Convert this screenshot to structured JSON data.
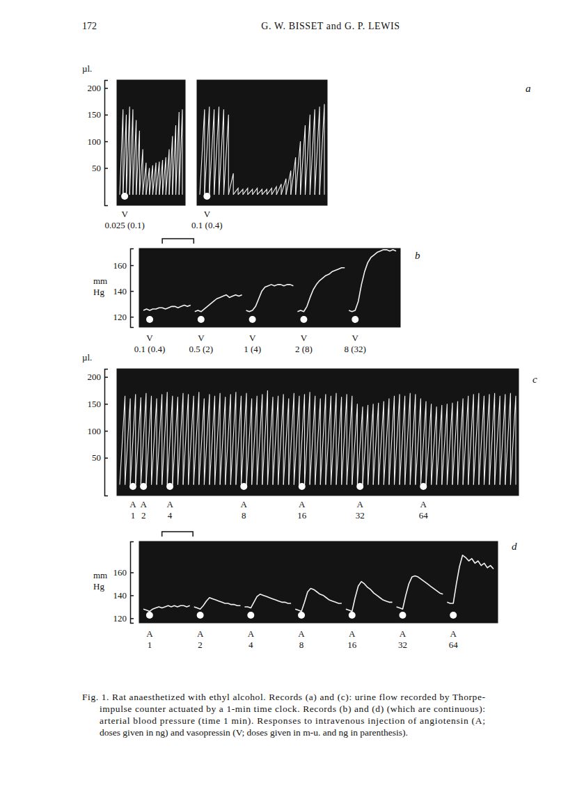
{
  "page": {
    "number": "172",
    "running_head": "G. W. BISSET and G. P. LEWIS",
    "caption": [
      "Fig. 1.  Rat anaesthetized with ethyl alcohol.  Records (a) and (c): urine flow recorded by Thorpe-",
      "impulse counter actuated by a 1-min time clock.  Records (b) and (d) (which are continuous):",
      "arterial blood pressure (time 1 min).  Responses to intravenous injection of angiotensin (A;",
      "doses given in ng) and vasopressin (V; doses given in m-u. and ng in parenthesis)."
    ]
  },
  "chart_data": [
    {
      "type": "sawtooth",
      "y_label": "µl.",
      "ylim": [
        -20,
        215
      ],
      "yticks": [
        50,
        100,
        150,
        200
      ],
      "tick_labels": "y",
      "values": [
        160,
        150,
        165,
        160,
        140,
        120,
        85,
        60,
        50,
        55,
        60,
        62,
        65,
        70,
        85,
        110,
        130,
        155,
        160
      ],
      "injections": [
        {
          "at": 1,
          "label": "V",
          "dose": "0.025 (0.1)"
        }
      ]
    },
    {
      "type": "sawtooth",
      "panel": "a",
      "ylim": [
        -20,
        215
      ],
      "tick_labels": false,
      "values": [
        160,
        165,
        160,
        165,
        160,
        150,
        40,
        12,
        10,
        12,
        10,
        12,
        10,
        10,
        12,
        15,
        20,
        30,
        45,
        70,
        100,
        130,
        150,
        160,
        165,
        170
      ],
      "injections": [
        {
          "at": 1,
          "label": "V",
          "dose": "0.1 (0.4)"
        }
      ]
    },
    {
      "type": "line",
      "panel": "b",
      "y_label": "mm Hg",
      "ylim": [
        112,
        173
      ],
      "yticks": [
        120,
        140,
        160
      ],
      "tick_labels": "y",
      "xlim": [
        0,
        1.5
      ],
      "x": [
        0,
        0.1,
        0.2,
        0.3,
        0.4,
        0.5,
        0.6,
        0.7,
        0.8,
        0.9,
        1.0,
        1.1,
        1.2,
        1.3,
        1.4,
        1.5
      ],
      "time_bar": [
        0.6,
        1.6
      ],
      "series": [
        {
          "name": "V",
          "dose": "0.1 (0.4)",
          "injection": 0.2,
          "values": [
            125,
            126,
            125,
            126,
            126,
            127,
            127,
            126,
            127,
            128,
            128,
            127,
            128,
            129,
            128,
            129
          ]
        },
        {
          "name": "V",
          "dose": "0.5 (2)",
          "injection": 0.2,
          "values": [
            124,
            125,
            124,
            126,
            128,
            130,
            132,
            134,
            135,
            136,
            137,
            135,
            136,
            137,
            136,
            137
          ]
        },
        {
          "name": "V",
          "dose": "1 (4)",
          "injection": 0.2,
          "values": [
            125,
            124,
            125,
            128,
            134,
            140,
            143,
            144,
            145,
            144,
            145,
            145,
            144,
            145,
            145,
            144
          ]
        },
        {
          "name": "V",
          "dose": "2 (8)",
          "injection": 0.2,
          "values": [
            124,
            125,
            124,
            128,
            135,
            141,
            145,
            148,
            150,
            152,
            153,
            155,
            156,
            157,
            158,
            158
          ]
        },
        {
          "name": "V",
          "dose": "8 (32)",
          "injection": 0.2,
          "values": [
            125,
            124,
            125,
            132,
            145,
            155,
            162,
            166,
            168,
            170,
            171,
            172,
            172,
            171,
            172,
            171
          ]
        }
      ]
    },
    {
      "type": "sawtooth",
      "panel": "c",
      "y_label": "µl.",
      "ylim": [
        -20,
        215
      ],
      "yticks": [
        50,
        100,
        150,
        200
      ],
      "tick_labels": "y",
      "values": [
        165,
        160,
        168,
        162,
        170,
        165,
        160,
        168,
        172,
        165,
        163,
        170,
        168,
        165,
        172,
        160,
        168,
        165,
        170,
        163,
        168,
        172,
        165,
        170,
        160,
        165,
        168,
        175,
        163,
        165,
        168,
        160,
        170,
        165,
        168,
        172,
        165,
        160,
        168,
        165,
        170,
        163,
        168,
        165,
        150,
        145,
        148,
        150,
        152,
        155,
        160,
        165,
        168,
        165,
        170,
        168,
        160,
        155,
        150,
        145,
        148,
        150,
        152,
        155,
        160,
        165,
        168,
        170,
        165,
        168,
        170,
        165,
        168,
        170,
        165
      ],
      "injections": [
        {
          "at": 2,
          "label": "A",
          "dose": 1
        },
        {
          "at": 4,
          "label": "A",
          "dose": 2
        },
        {
          "at": 9,
          "label": "A",
          "dose": 4
        },
        {
          "at": 23,
          "label": "A",
          "dose": 8
        },
        {
          "at": 34,
          "label": "A",
          "dose": 16
        },
        {
          "at": 45,
          "label": "A",
          "dose": 32
        },
        {
          "at": 57,
          "label": "A",
          "dose": 64
        }
      ]
    },
    {
      "type": "line",
      "panel": "d",
      "y_label": "mm Hg",
      "ylim": [
        116,
        187
      ],
      "yticks": [
        120,
        140,
        160
      ],
      "tick_labels": "y",
      "xlim": [
        0,
        1.5
      ],
      "x": [
        0,
        0.1,
        0.2,
        0.3,
        0.4,
        0.5,
        0.6,
        0.7,
        0.8,
        0.9,
        1.0,
        1.1,
        1.2,
        1.3,
        1.4,
        1.5
      ],
      "time_bar": [
        0.6,
        1.6
      ],
      "series": [
        {
          "name": "A",
          "dose": 1,
          "injection": 0.2,
          "values": [
            128,
            127,
            126,
            128,
            129,
            130,
            129,
            130,
            131,
            130,
            131,
            130,
            131,
            131,
            130,
            131
          ]
        },
        {
          "name": "A",
          "dose": 2,
          "injection": 0.2,
          "values": [
            130,
            129,
            128,
            131,
            135,
            138,
            137,
            136,
            135,
            134,
            133,
            133,
            132,
            132,
            131,
            131
          ]
        },
        {
          "name": "A",
          "dose": 4,
          "injection": 0.2,
          "values": [
            130,
            130,
            129,
            134,
            139,
            141,
            140,
            139,
            138,
            137,
            136,
            135,
            134,
            134,
            133,
            133
          ]
        },
        {
          "name": "A",
          "dose": 8,
          "injection": 0.2,
          "values": [
            128,
            127,
            126,
            134,
            143,
            146,
            145,
            143,
            141,
            140,
            138,
            136,
            135,
            134,
            133,
            133
          ]
        },
        {
          "name": "A",
          "dose": 16,
          "injection": 0.2,
          "values": [
            128,
            127,
            126,
            138,
            148,
            152,
            150,
            147,
            145,
            142,
            140,
            138,
            136,
            135,
            134,
            134
          ]
        },
        {
          "name": "A",
          "dose": 32,
          "injection": 0.2,
          "values": [
            130,
            129,
            128,
            140,
            150,
            156,
            157,
            156,
            154,
            152,
            150,
            148,
            146,
            144,
            142,
            141
          ]
        },
        {
          "name": "A",
          "dose": 64,
          "injection": 0.2,
          "values": [
            134,
            133,
            133,
            150,
            165,
            175,
            173,
            170,
            172,
            168,
            170,
            166,
            168,
            164,
            166,
            163
          ]
        }
      ]
    }
  ]
}
